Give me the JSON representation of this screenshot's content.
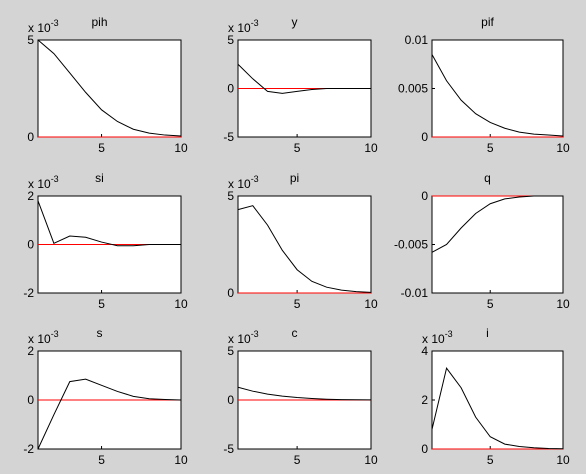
{
  "chart_data": [
    {
      "type": "line",
      "title": "pih",
      "x": [
        1,
        2,
        3,
        4,
        5,
        6,
        7,
        8,
        9,
        10
      ],
      "xlim": [
        1,
        10
      ],
      "xticks": [
        5,
        10
      ],
      "ylim": [
        0,
        5
      ],
      "yticks": [
        0,
        5
      ],
      "y_exponent_base": "x 10",
      "y_exponent": "-3",
      "series": [
        {
          "color": "#000000",
          "values": [
            5,
            4.3,
            3.3,
            2.3,
            1.4,
            0.8,
            0.4,
            0.2,
            0.1,
            0.05
          ]
        },
        {
          "color": "#ff0000",
          "values": [
            0,
            0,
            0,
            0,
            0,
            0,
            0,
            0,
            0,
            0
          ]
        }
      ]
    },
    {
      "type": "line",
      "title": "y",
      "x": [
        1,
        2,
        3,
        4,
        5,
        6,
        7,
        8,
        9,
        10
      ],
      "xlim": [
        1,
        10
      ],
      "xticks": [
        5,
        10
      ],
      "ylim": [
        -5,
        5
      ],
      "yticks": [
        -5,
        0,
        5
      ],
      "y_exponent_base": "x 10",
      "y_exponent": "-3",
      "series": [
        {
          "color": "#000000",
          "values": [
            2.5,
            1,
            -0.3,
            -0.5,
            -0.3,
            -0.1,
            0,
            0,
            0,
            0
          ]
        },
        {
          "color": "#ff0000",
          "values": [
            0,
            0,
            0,
            0,
            0,
            0,
            0,
            0,
            0,
            0
          ]
        }
      ]
    },
    {
      "type": "line",
      "title": "pif",
      "x": [
        1,
        2,
        3,
        4,
        5,
        6,
        7,
        8,
        9,
        10
      ],
      "xlim": [
        1,
        10
      ],
      "xticks": [
        5,
        10
      ],
      "ylim": [
        0,
        0.01
      ],
      "yticks": [
        0,
        0.005,
        0.01
      ],
      "series": [
        {
          "color": "#000000",
          "values": [
            0.0085,
            0.0058,
            0.0038,
            0.0024,
            0.0015,
            0.0009,
            0.0005,
            0.0003,
            0.0002,
            0.0001
          ]
        },
        {
          "color": "#ff0000",
          "values": [
            0,
            0,
            0,
            0,
            0,
            0,
            0,
            0,
            0,
            0
          ]
        }
      ]
    },
    {
      "type": "line",
      "title": "si",
      "x": [
        1,
        2,
        3,
        4,
        5,
        6,
        7,
        8,
        9,
        10
      ],
      "xlim": [
        1,
        10
      ],
      "xticks": [
        5,
        10
      ],
      "ylim": [
        -2,
        2
      ],
      "yticks": [
        -2,
        0,
        2
      ],
      "y_exponent_base": "x 10",
      "y_exponent": "-3",
      "series": [
        {
          "color": "#000000",
          "values": [
            1.8,
            0.05,
            0.35,
            0.3,
            0.1,
            -0.05,
            -0.05,
            0,
            0,
            0
          ]
        },
        {
          "color": "#ff0000",
          "values": [
            0,
            0,
            0,
            0,
            0,
            0,
            0,
            0,
            0,
            0
          ]
        }
      ]
    },
    {
      "type": "line",
      "title": "pi",
      "x": [
        1,
        2,
        3,
        4,
        5,
        6,
        7,
        8,
        9,
        10
      ],
      "xlim": [
        1,
        10
      ],
      "xticks": [
        5,
        10
      ],
      "ylim": [
        0,
        5
      ],
      "yticks": [
        0,
        5
      ],
      "y_exponent_base": "x 10",
      "y_exponent": "-3",
      "series": [
        {
          "color": "#000000",
          "values": [
            4.3,
            4.5,
            3.5,
            2.2,
            1.2,
            0.6,
            0.3,
            0.15,
            0.07,
            0.03
          ]
        },
        {
          "color": "#ff0000",
          "values": [
            0,
            0,
            0,
            0,
            0,
            0,
            0,
            0,
            0,
            0
          ]
        }
      ]
    },
    {
      "type": "line",
      "title": "q",
      "x": [
        1,
        2,
        3,
        4,
        5,
        6,
        7,
        8,
        9,
        10
      ],
      "xlim": [
        1,
        10
      ],
      "xticks": [
        5,
        10
      ],
      "ylim": [
        -0.01,
        0
      ],
      "yticks": [
        -0.01,
        -0.005,
        0
      ],
      "series": [
        {
          "color": "#000000",
          "values": [
            -0.0058,
            -0.005,
            -0.0033,
            -0.0018,
            -0.0008,
            -0.0003,
            -0.0001,
            0,
            0,
            0
          ]
        },
        {
          "color": "#ff0000",
          "values": [
            0,
            0,
            0,
            0,
            0,
            0,
            0,
            0,
            0,
            0
          ]
        }
      ]
    },
    {
      "type": "line",
      "title": "s",
      "x": [
        1,
        2,
        3,
        4,
        5,
        6,
        7,
        8,
        9,
        10
      ],
      "xlim": [
        1,
        10
      ],
      "xticks": [
        5,
        10
      ],
      "ylim": [
        -2,
        2
      ],
      "yticks": [
        -2,
        0,
        2
      ],
      "y_exponent_base": "x 10",
      "y_exponent": "-3",
      "series": [
        {
          "color": "#000000",
          "values": [
            -2,
            -0.6,
            0.75,
            0.85,
            0.6,
            0.35,
            0.15,
            0.05,
            0.02,
            0
          ]
        },
        {
          "color": "#ff0000",
          "values": [
            0,
            0,
            0,
            0,
            0,
            0,
            0,
            0,
            0,
            0
          ]
        }
      ]
    },
    {
      "type": "line",
      "title": "c",
      "x": [
        1,
        2,
        3,
        4,
        5,
        6,
        7,
        8,
        9,
        10
      ],
      "xlim": [
        1,
        10
      ],
      "xticks": [
        5,
        10
      ],
      "ylim": [
        -5,
        5
      ],
      "yticks": [
        -5,
        0,
        5
      ],
      "y_exponent_base": "x 10",
      "y_exponent": "-3",
      "series": [
        {
          "color": "#000000",
          "values": [
            1.3,
            0.9,
            0.6,
            0.4,
            0.25,
            0.15,
            0.08,
            0.04,
            0.02,
            0.01
          ]
        },
        {
          "color": "#ff0000",
          "values": [
            0,
            0,
            0,
            0,
            0,
            0,
            0,
            0,
            0,
            0
          ]
        }
      ]
    },
    {
      "type": "line",
      "title": "i",
      "x": [
        1,
        2,
        3,
        4,
        5,
        6,
        7,
        8,
        9,
        10
      ],
      "xlim": [
        1,
        10
      ],
      "xticks": [
        5,
        10
      ],
      "ylim": [
        0,
        4
      ],
      "yticks": [
        0,
        2,
        4
      ],
      "y_exponent_base": "x 10",
      "y_exponent": "-3",
      "series": [
        {
          "color": "#000000",
          "values": [
            0.8,
            3.3,
            2.5,
            1.3,
            0.5,
            0.2,
            0.1,
            0.05,
            0.02,
            0.01
          ]
        },
        {
          "color": "#ff0000",
          "values": [
            0,
            0,
            0,
            0,
            0,
            0,
            0,
            0,
            0,
            0
          ]
        }
      ]
    }
  ]
}
